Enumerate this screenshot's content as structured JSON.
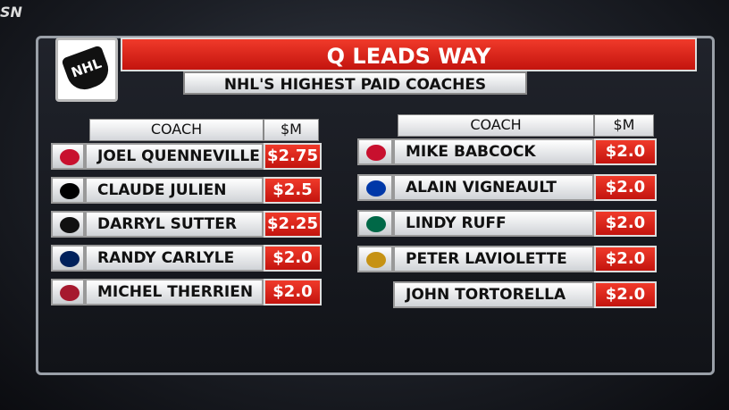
{
  "channel": "SN",
  "logo": "NHL",
  "header": {
    "title": "Q LEADS WAY",
    "subtitle": "NHL'S HIGHEST PAID COACHES"
  },
  "tables": [
    {
      "columns": [
        "COACH",
        "$M"
      ],
      "rows": [
        [
          "JOEL QUENNEVILLE",
          "$2.75"
        ],
        [
          "CLAUDE JULIEN",
          "$2.5"
        ],
        [
          "DARRYL SUTTER",
          "$2.25"
        ],
        [
          "RANDY CARLYLE",
          "$2.0"
        ],
        [
          "MICHEL THERRIEN",
          "$2.0"
        ]
      ]
    },
    {
      "columns": [
        "COACH",
        "$M"
      ],
      "rows": [
        [
          "MIKE BABCOCK",
          "$2.0"
        ],
        [
          "ALAIN VIGNEAULT",
          "$2.0"
        ],
        [
          "LINDY RUFF",
          "$2.0"
        ],
        [
          "PETER LAVIOLETTE",
          "$2.0"
        ],
        [
          "JOHN TORTORELLA",
          "$2.0"
        ]
      ]
    }
  ]
}
